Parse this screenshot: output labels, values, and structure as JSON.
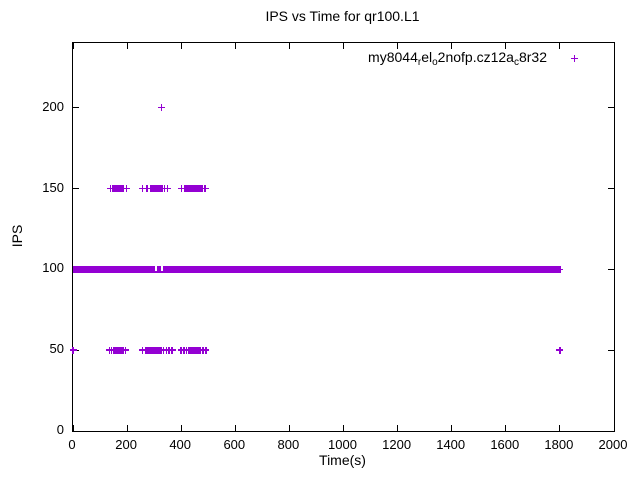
{
  "chart_data": {
    "type": "scatter",
    "title": "IPS vs Time for qr100.L1",
    "xlabel": "Time(s)",
    "ylabel": "IPS",
    "xlim": [
      0,
      2000
    ],
    "ylim": [
      0,
      240
    ],
    "xticks": [
      0,
      200,
      400,
      600,
      800,
      1000,
      1200,
      1400,
      1600,
      1800,
      2000
    ],
    "yticks": [
      0,
      50,
      100,
      150,
      200
    ],
    "grid": false,
    "legend_position": "top-right-inside",
    "marker": "plus",
    "series": [
      {
        "name": "my8044_rel_o2nofp.cz12a_c8r32",
        "name_parts": [
          {
            "text": "my8044"
          },
          {
            "text": "r",
            "sub": true
          },
          {
            "text": "el"
          },
          {
            "text": "o",
            "sub": true
          },
          {
            "text": "2nofp.cz12a"
          },
          {
            "text": "c",
            "sub": true
          },
          {
            "text": "8r32"
          }
        ],
        "color": "#9400d3",
        "bands": [
          {
            "ips": 100,
            "t_from": 0,
            "t_to": 1800,
            "gaps_t": [
              [
                302,
                311
              ],
              [
                324,
                334
              ]
            ]
          }
        ],
        "point_rows": [
          {
            "ips": 200,
            "t": [
              328
            ]
          },
          {
            "ips": 150,
            "t": [
              139,
              148,
              155,
              158,
              161,
              164,
              167,
              170,
              173,
              177,
              185,
              198,
              257,
              274,
              286,
              289,
              292,
              295,
              298,
              301,
              304,
              307,
              310,
              313,
              316,
              319,
              322,
              326,
              330,
              338,
              349,
              402,
              414,
              421,
              424,
              427,
              430,
              433,
              436,
              439,
              442,
              445,
              448,
              451,
              454,
              457,
              460,
              463,
              467,
              470,
              477,
              488
            ]
          },
          {
            "ips": 100,
            "t": [
              1800
            ]
          },
          {
            "ips": 50,
            "t": [
              0,
              134,
              143,
              150,
              153,
              156,
              159,
              162,
              165,
              168,
              171,
              174,
              177,
              185,
              195,
              258,
              270,
              277,
              280,
              283,
              286,
              289,
              292,
              295,
              298,
              301,
              304,
              307,
              310,
              314,
              318,
              325,
              335,
              345,
              355,
              366,
              400,
              410,
              420,
              429,
              432,
              435,
              438,
              441,
              444,
              447,
              450,
              453,
              456,
              459,
              462,
              466,
              470,
              480,
              491,
              1800
            ]
          }
        ]
      }
    ]
  }
}
